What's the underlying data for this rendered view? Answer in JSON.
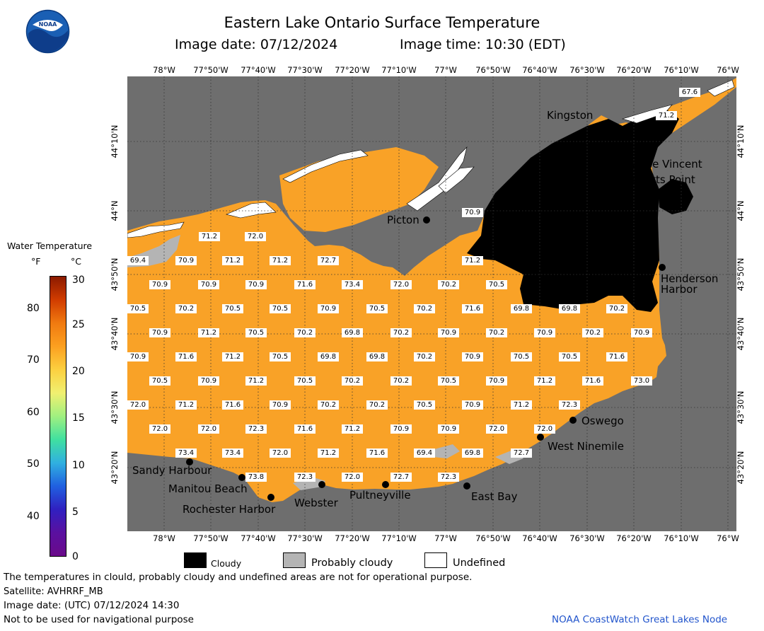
{
  "header": {
    "title": "Eastern Lake Ontario Surface Temperature",
    "date_label": "Image date: 07/12/2024",
    "time_label": "Image time: 10:30 (EDT)",
    "logo_text": "NOAA"
  },
  "axes": {
    "longitudes": [
      "78°W",
      "77°50'W",
      "77°40'W",
      "77°30'W",
      "77°20'W",
      "77°10'W",
      "77°W",
      "76°50'W",
      "76°40'W",
      "76°30'W",
      "76°20'W",
      "76°10'W",
      "76°W"
    ],
    "latitudes": [
      "44°10'N",
      "44°N",
      "43°50'N",
      "43°40'N",
      "43°30'N",
      "43°20'N"
    ]
  },
  "color_scale": {
    "title": "Water Temperature",
    "unit_f": "°F",
    "unit_c": "°C",
    "f_ticks": [
      "80",
      "70",
      "60",
      "50",
      "40"
    ],
    "c_ticks": [
      "30",
      "25",
      "20",
      "15",
      "10",
      "5",
      "0"
    ],
    "colors": [
      "#8b1a00",
      "#d13c00",
      "#f07a10",
      "#fca020",
      "#fcd040",
      "#f0f070",
      "#a0f080",
      "#40e0a0",
      "#30b0e0",
      "#2060e0",
      "#3020c0",
      "#5a10a0",
      "#6a0a8a"
    ]
  },
  "places": [
    {
      "name": "Kingston"
    },
    {
      "name": "Cape Vincent"
    },
    {
      "name": "Tibbetts Point"
    },
    {
      "name": "Picton"
    },
    {
      "name": "Henderson Harbor"
    },
    {
      "name": "Oswego"
    },
    {
      "name": "West Ninemile"
    },
    {
      "name": "Sandy Harbour"
    },
    {
      "name": "Manitou Beach"
    },
    {
      "name": "Rochester Harbor"
    },
    {
      "name": "Webster"
    },
    {
      "name": "Pultneyville"
    },
    {
      "name": "East Bay"
    }
  ],
  "temperature_labels": [
    "67.6",
    "71.2",
    "70.9",
    "71.2",
    "72.0",
    "69.4",
    "70.9",
    "71.2",
    "71.2",
    "72.7",
    "71.2",
    "70.9",
    "70.9",
    "70.9",
    "71.6",
    "73.4",
    "72.0",
    "70.2",
    "70.5",
    "70.5",
    "70.2",
    "70.5",
    "70.5",
    "70.9",
    "70.5",
    "70.2",
    "71.6",
    "69.8",
    "69.8",
    "70.2",
    "70.9",
    "71.2",
    "70.5",
    "70.2",
    "69.8",
    "70.2",
    "70.9",
    "70.2",
    "70.9",
    "70.2",
    "70.9",
    "70.9",
    "71.6",
    "71.2",
    "70.5",
    "69.8",
    "69.8",
    "70.2",
    "70.9",
    "70.5",
    "70.5",
    "71.6",
    "70.5",
    "70.9",
    "71.2",
    "70.5",
    "70.2",
    "70.2",
    "70.5",
    "70.9",
    "71.2",
    "71.6",
    "73.0",
    "72.0",
    "71.2",
    "71.6",
    "70.9",
    "70.2",
    "70.2",
    "70.5",
    "70.9",
    "71.2",
    "72.3",
    "72.0",
    "72.0",
    "72.3",
    "71.6",
    "71.2",
    "70.9",
    "70.9",
    "72.0",
    "72.0",
    "73.4",
    "73.4",
    "72.0",
    "71.2",
    "71.6",
    "69.4",
    "69.8",
    "72.7",
    "73.8",
    "72.3",
    "72.0",
    "72.7",
    "72.3"
  ],
  "legend": {
    "cloudy": "Cloudy",
    "probably_cloudy": "Probably cloudy",
    "undefined": "Undefined"
  },
  "footer": {
    "note1": "The temperatures in clould, probably cloudy and undefined areas are not for operational purpose.",
    "satellite": "Satellite: AVHRRF_MB",
    "utc_date": "Image date: (UTC) 07/12/2024  14:30",
    "nav_warning": "Not to be used for navigational purpose",
    "credit": "NOAA CoastWatch Great Lakes Node"
  },
  "colors": {
    "land": "#6e6e6e",
    "water": "#f9a227",
    "cloud": "#000000",
    "prob_cloud": "#b4b4b4",
    "undefined": "#ffffff",
    "credit": "#2255cc"
  }
}
